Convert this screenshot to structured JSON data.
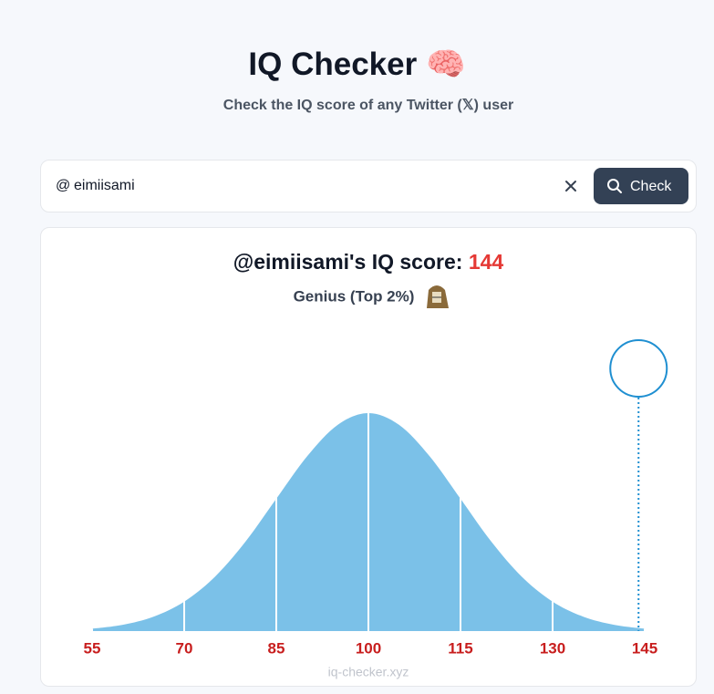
{
  "header": {
    "title": "IQ Checker",
    "title_emoji": "🧠",
    "subtitle": "Check the IQ score of any Twitter (𝕏) user"
  },
  "search": {
    "prefix": "@",
    "value": "eimiisami",
    "button": "Check"
  },
  "result": {
    "heading": "@eimiisami's IQ score: ",
    "score": 144,
    "rank": "Genius (Top 2%)"
  },
  "chart_data": {
    "type": "area",
    "x": [
      55,
      60,
      65,
      70,
      75,
      80,
      85,
      90,
      95,
      100,
      105,
      110,
      115,
      120,
      125,
      130,
      135,
      140,
      145
    ],
    "values": [
      1.1,
      2.9,
      6.6,
      13.5,
      24.9,
      41.1,
      60.7,
      80.1,
      94.6,
      100,
      94.6,
      80.1,
      60.7,
      41.1,
      24.9,
      13.5,
      6.6,
      2.9,
      1.1
    ],
    "color": "#7bc1e8",
    "xlim": [
      55,
      145
    ],
    "ylim": [
      0,
      100
    ],
    "xticks": [
      55,
      70,
      85,
      100,
      115,
      130,
      145
    ],
    "grid": true,
    "marker_color": "#1f8fd1",
    "tick_color": "#c81e1e"
  },
  "footer": "iq-checker.xyz"
}
